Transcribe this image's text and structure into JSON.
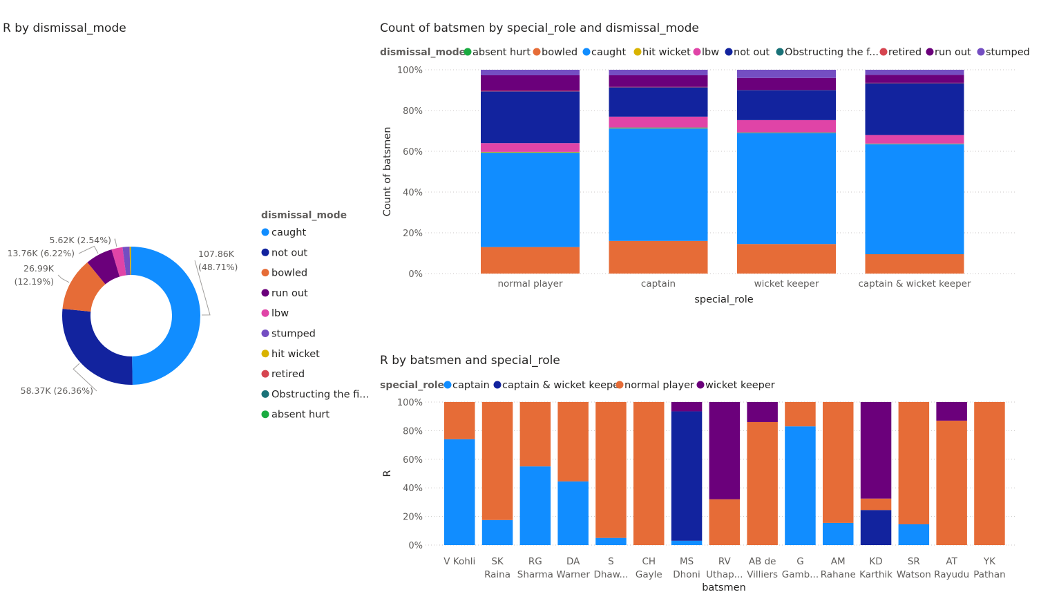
{
  "colors": {
    "caught": "#118DFF",
    "not out": "#12239E",
    "bowled": "#E66C37",
    "run out": "#6B007B",
    "lbw": "#E044A7",
    "stumped": "#744EC2",
    "hit wicket": "#D9B300",
    "retired": "#D64550",
    "Obstructing the field": "#197278",
    "absent hurt": "#1AAB40",
    "captain": "#118DFF",
    "captain & wicket keeper": "#12239E",
    "normal player": "#E66C37",
    "wicket keeper": "#6B007B",
    "text": "#252423",
    "axis_text": "#605E5C",
    "gridline": "#C8C6C4"
  },
  "chart_data": [
    {
      "type": "pie",
      "variant": "donut",
      "title": "R by dismissal_mode",
      "legend_title": "dismissal_mode",
      "legend_position": "right",
      "slices": [
        {
          "name": "caught",
          "value_label": "107.86K",
          "pct_label": "(48.71%)",
          "pct": 48.71
        },
        {
          "name": "not out",
          "value_label": "58.37K",
          "pct_label": "(26.36%)",
          "pct": 26.36
        },
        {
          "name": "bowled",
          "value_label": "26.99K",
          "pct_label": "(12.19%)",
          "pct": 12.19
        },
        {
          "name": "run out",
          "value_label": "13.76K",
          "pct_label": "(6.22%)",
          "pct": 6.22
        },
        {
          "name": "lbw",
          "value_label": "5.62K",
          "pct_label": "(2.54%)",
          "pct": 2.54
        },
        {
          "name": "stumped",
          "value_label": "",
          "pct_label": "",
          "pct": 1.6
        },
        {
          "name": "hit wicket",
          "value_label": "",
          "pct_label": "",
          "pct": 0.3
        },
        {
          "name": "retired",
          "value_label": "",
          "pct_label": "",
          "pct": 0.05
        },
        {
          "name": "Obstructing the field",
          "value_label": "",
          "pct_label": "",
          "pct": 0.02
        },
        {
          "name": "absent hurt",
          "value_label": "",
          "pct_label": "",
          "pct": 0.01
        }
      ],
      "legend_items": [
        "caught",
        "not out",
        "bowled",
        "run out",
        "lbw",
        "stumped",
        "hit wicket",
        "retired",
        "Obstructing the fi...",
        "absent hurt"
      ],
      "legend_keys": [
        "caught",
        "not out",
        "bowled",
        "run out",
        "lbw",
        "stumped",
        "hit wicket",
        "retired",
        "Obstructing the field",
        "absent hurt"
      ]
    },
    {
      "type": "bar",
      "variant": "100% stacked column",
      "title": "Count of batsmen by special_role and dismissal_mode",
      "legend_title": "dismissal_mode",
      "legend_position": "top-left",
      "legend_items": [
        "absent hurt",
        "bowled",
        "caught",
        "hit wicket",
        "lbw",
        "not out",
        "Obstructing the f...",
        "retired",
        "run out",
        "stumped"
      ],
      "legend_keys": [
        "absent hurt",
        "bowled",
        "caught",
        "hit wicket",
        "lbw",
        "not out",
        "Obstructing the field",
        "retired",
        "run out",
        "stumped"
      ],
      "xlabel": "special_role",
      "ylabel": "Count of batsmen",
      "ylim": [
        0,
        100
      ],
      "yticks": [
        "0%",
        "20%",
        "40%",
        "60%",
        "80%",
        "100%"
      ],
      "grid": true,
      "categories": [
        "normal player",
        "captain",
        "wicket keeper",
        "captain & wicket keeper"
      ],
      "series": [
        {
          "name": "bowled",
          "values": [
            13,
            16,
            14.5,
            9.5
          ]
        },
        {
          "name": "caught",
          "values": [
            46.3,
            55.3,
            54.5,
            54
          ]
        },
        {
          "name": "hit wicket",
          "values": [
            0.3,
            0.3,
            0.2,
            0.2
          ]
        },
        {
          "name": "Obstructing the field",
          "values": [
            0.1,
            0.1,
            0.1,
            0.1
          ]
        },
        {
          "name": "lbw",
          "values": [
            4.3,
            5.3,
            6,
            4.2
          ]
        },
        {
          "name": "not out",
          "values": [
            25.4,
            14.4,
            14.7,
            25.4
          ]
        },
        {
          "name": "retired",
          "values": [
            0.3,
            0.2,
            0.1,
            0.2
          ]
        },
        {
          "name": "run out",
          "values": [
            7.6,
            5.7,
            5.9,
            3.9
          ]
        },
        {
          "name": "stumped",
          "values": [
            2.7,
            2.7,
            4,
            2.5
          ]
        }
      ]
    },
    {
      "type": "bar",
      "variant": "100% stacked column",
      "title": "R by batsmen and special_role",
      "legend_title": "special_role",
      "legend_position": "top-left",
      "legend_items": [
        "captain",
        "captain & wicket keeper",
        "normal player",
        "wicket keeper"
      ],
      "xlabel": "batsmen",
      "ylabel": "R",
      "ylim": [
        0,
        100
      ],
      "yticks": [
        "0%",
        "20%",
        "40%",
        "60%",
        "80%",
        "100%"
      ],
      "grid": true,
      "categories": [
        [
          "V Kohli"
        ],
        [
          "SK",
          "Raina"
        ],
        [
          "RG",
          "Sharma"
        ],
        [
          "DA",
          "Warner"
        ],
        [
          "S",
          "Dhaw..."
        ],
        [
          "CH",
          "Gayle"
        ],
        [
          "MS",
          "Dhoni"
        ],
        [
          "RV",
          "Uthap..."
        ],
        [
          "AB de",
          "Villiers"
        ],
        [
          "G",
          "Gamb..."
        ],
        [
          "AM",
          "Rahane"
        ],
        [
          "KD",
          "Karthik"
        ],
        [
          "SR",
          "Watson"
        ],
        [
          "AT",
          "Rayudu"
        ],
        [
          "YK",
          "Pathan"
        ]
      ],
      "series": [
        {
          "name": "captain",
          "values": [
            74,
            17.5,
            55,
            44.5,
            5,
            0,
            3,
            0,
            0,
            83,
            15.5,
            0,
            14.5,
            0,
            0
          ]
        },
        {
          "name": "captain & wicket keeper",
          "values": [
            0,
            0,
            0,
            0,
            0,
            0,
            90.5,
            0,
            0,
            0,
            0,
            24.5,
            0,
            0,
            0
          ]
        },
        {
          "name": "normal player",
          "values": [
            26,
            82.5,
            45,
            55.5,
            95,
            100,
            0,
            32,
            86,
            17,
            84.5,
            8,
            85.5,
            87,
            100
          ]
        },
        {
          "name": "wicket keeper",
          "values": [
            0,
            0,
            0,
            0,
            0,
            0,
            6.5,
            68,
            14,
            0,
            0,
            67.5,
            0,
            13,
            0
          ]
        }
      ]
    }
  ]
}
